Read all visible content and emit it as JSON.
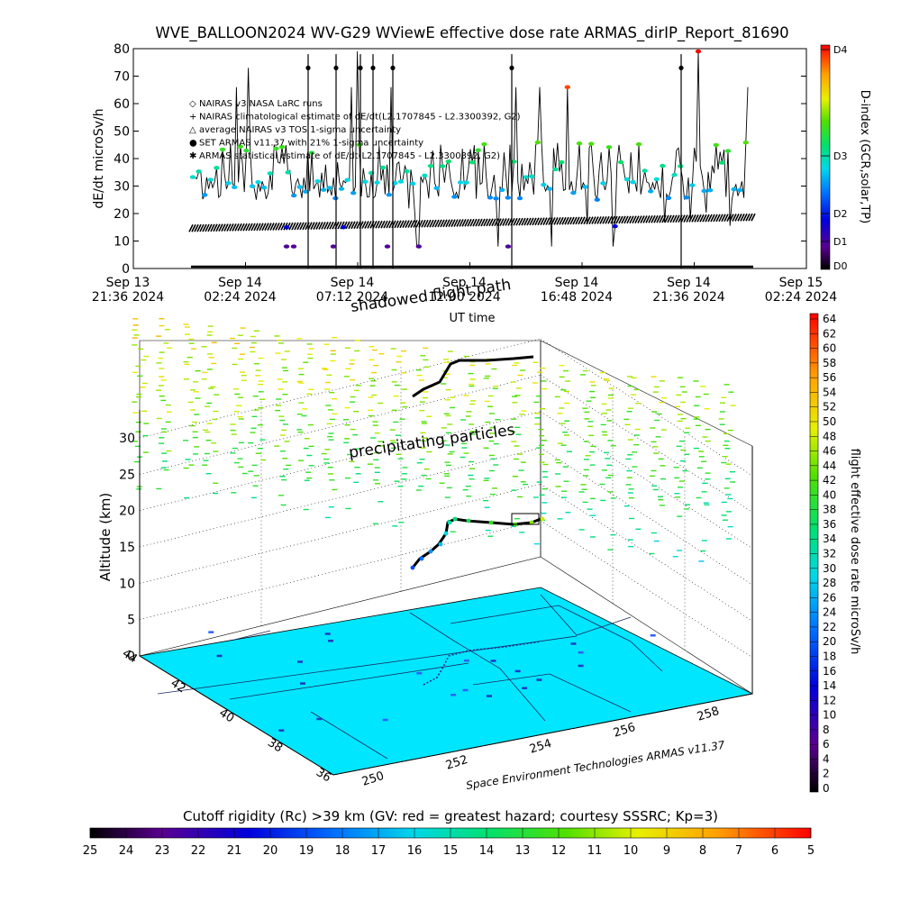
{
  "header": {
    "title": "WVE_BALLOON2024 WV-G29 WViewE effective dose rate ARMAS_dirIP_Report_81690"
  },
  "chart_data": [
    {
      "type": "scatter",
      "name": "dose-rate-timeseries",
      "ylabel": "dE/dt microSv/h",
      "xlabel": "UT time",
      "ylim": [
        0,
        80
      ],
      "yticks": [
        0,
        10,
        20,
        30,
        40,
        50,
        60,
        70,
        80
      ],
      "xticks": [
        {
          "date": "Sep 13",
          "time": "21:36 2024"
        },
        {
          "date": "Sep 14",
          "time": "02:24 2024"
        },
        {
          "date": "Sep 14",
          "time": "07:12 2024"
        },
        {
          "date": "Sep 14",
          "time": "12:00 2024"
        },
        {
          "date": "Sep 14",
          "time": "16:48 2024"
        },
        {
          "date": "Sep 14",
          "time": "21:36 2024"
        },
        {
          "date": "Sep 15",
          "time": "02:24 2024"
        }
      ],
      "legend": [
        {
          "symbol": "◇",
          "label": "NAIRAS v3 NASA LaRC runs"
        },
        {
          "symbol": "+",
          "label": "NAIRAS climatological estimate of dE/dt(L2.1707845 - L2.3300392, G2)"
        },
        {
          "symbol": "△",
          "label": "average NAIRAS v3 TOS 1-sigma uncertainty"
        },
        {
          "symbol": "●",
          "label": "SET ARMAS v11.37 with 21% 1-sigma uncertainty"
        },
        {
          "symbol": "✱",
          "label": "ARMAS statistical estimate of dE/dt(L2.1707845 - L2.3300392, G2)"
        }
      ],
      "d_index": {
        "label": "D-index (GCR,solar,TP)",
        "levels": [
          "D0",
          "D1",
          "D2",
          "D3",
          "D4"
        ]
      },
      "series": [
        {
          "name": "SET ARMAS v11.37 with 21% 1-sigma uncertainty",
          "typical_values": [
            27,
            30,
            33,
            37,
            44,
            22,
            15
          ],
          "outlier_values": [
            8,
            66,
            73,
            79
          ]
        },
        {
          "name": "NAIRAS climatological estimate of dE/dt(L2.1707845 - L2.3300392, G2)",
          "start_value": 14,
          "end_value": 18
        }
      ]
    },
    {
      "type": "scatter",
      "name": "altitude-3d",
      "zlabel": "Altitude (km)",
      "zticks": [
        0,
        5,
        10,
        15,
        20,
        25,
        30
      ],
      "latticks": [
        36,
        38,
        40,
        42,
        44
      ],
      "lonticks": [
        250,
        252,
        254,
        256,
        258
      ],
      "annotations": [
        "shadowed flight path",
        "precipitating particles"
      ],
      "credit": "Space Environment Technologies ARMAS v11.37",
      "colorbar": {
        "label": "flight effective dose rate microSv/h",
        "ticks": [
          0,
          2,
          4,
          6,
          8,
          10,
          12,
          14,
          16,
          18,
          20,
          22,
          24,
          26,
          28,
          30,
          32,
          34,
          36,
          38,
          40,
          42,
          44,
          46,
          48,
          50,
          52,
          54,
          56,
          58,
          60,
          62,
          64
        ]
      },
      "flight_path": [
        {
          "lon": 250.8,
          "lat": 40.0,
          "alt": 2
        },
        {
          "lon": 251.2,
          "lat": 40.5,
          "alt": 6
        },
        {
          "lon": 251.6,
          "lat": 41.0,
          "alt": 10
        },
        {
          "lon": 252.0,
          "lat": 41.4,
          "alt": 14
        },
        {
          "lon": 252.6,
          "lat": 41.8,
          "alt": 17
        },
        {
          "lon": 253.6,
          "lat": 42.0,
          "alt": 18
        },
        {
          "lon": 255.0,
          "lat": 42.2,
          "alt": 18
        }
      ]
    },
    {
      "type": "heatmap",
      "name": "cutoff-rigidity-colorbar",
      "label": "Cutoff rigidity (Rc) >39 km (GV: red = greatest hazard; courtesy SSSRC; Kp=3)",
      "ticks": [
        25,
        24,
        23,
        22,
        21,
        20,
        19,
        18,
        17,
        16,
        15,
        14,
        13,
        12,
        11,
        10,
        9,
        8,
        7,
        6,
        5
      ]
    }
  ],
  "colors": {
    "ground": "#00e6ff",
    "background": "#ffffff",
    "path": "#000000"
  }
}
